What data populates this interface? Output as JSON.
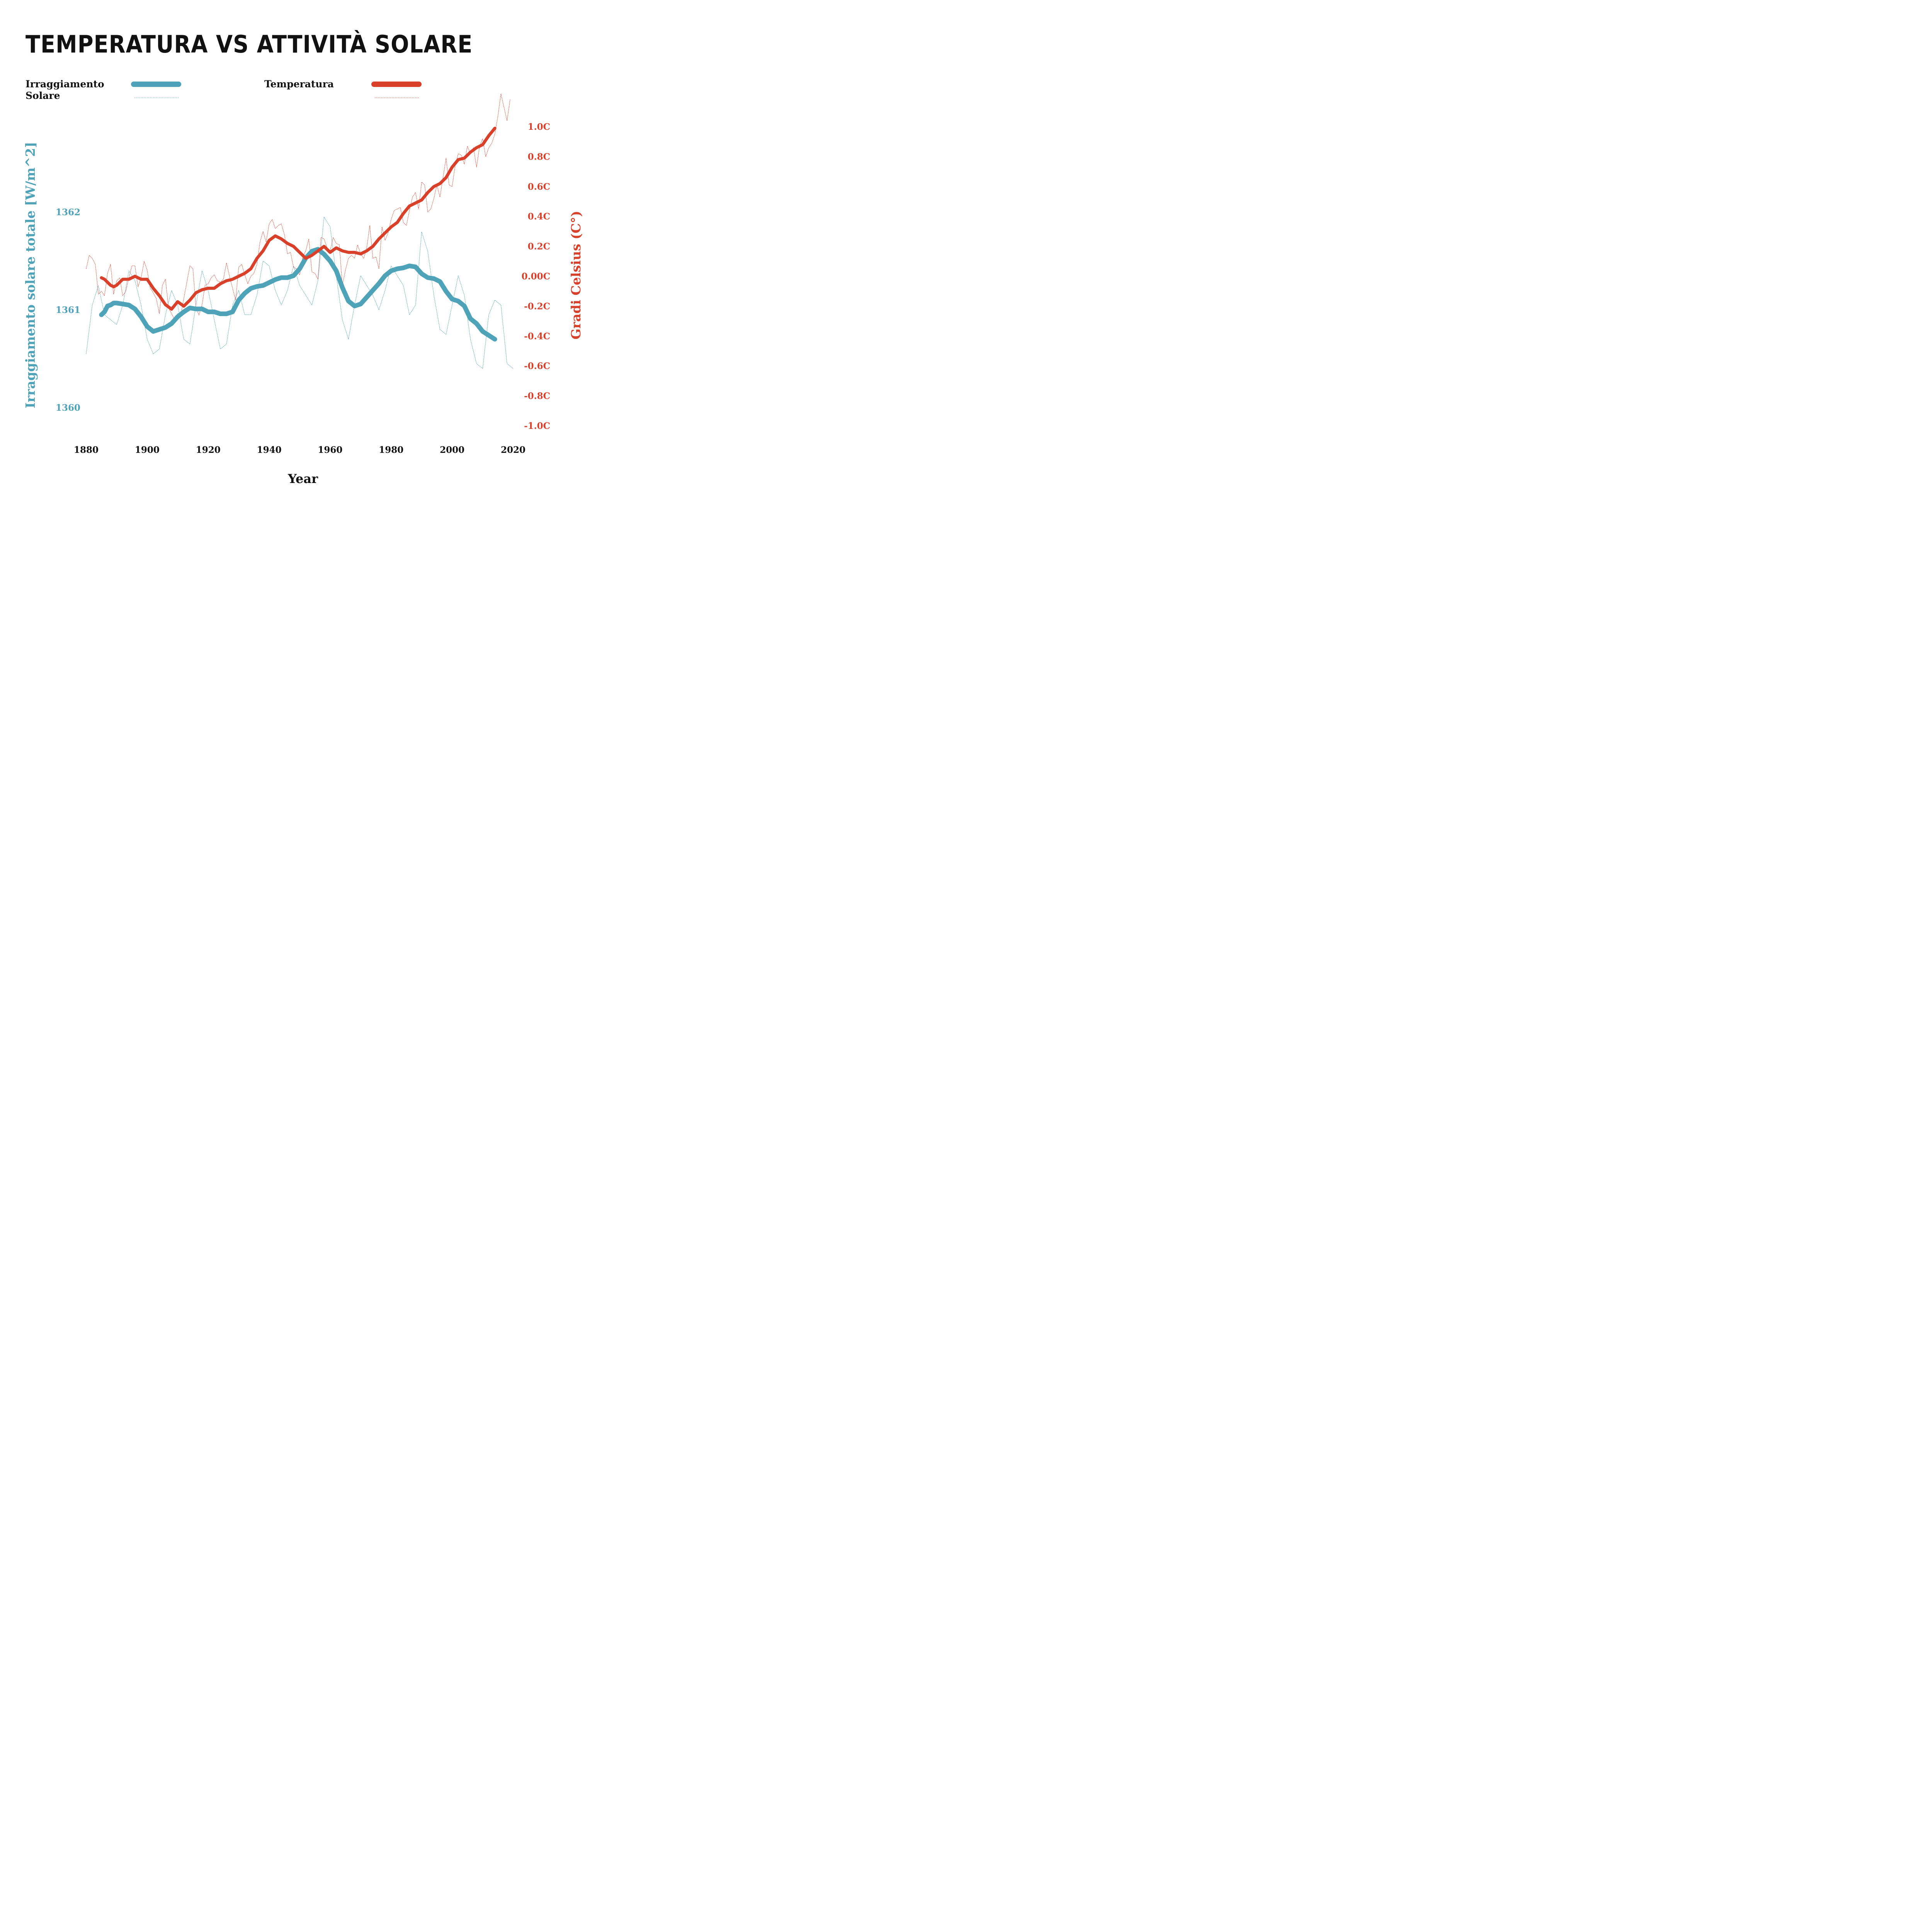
{
  "chart_data": {
    "type": "line",
    "title": "TEMPERATURA VS ATTIVITÀ SOLARE",
    "xlabel": "Year",
    "ylabel_left": "Irraggiamento solare totale [W/m^2]",
    "ylabel_right": "Gradi Celsius (C°)",
    "xlim": [
      1880,
      2020
    ],
    "ylim_left": [
      1359.75,
      1362.45
    ],
    "ylim_right": [
      -1.1,
      1.1
    ],
    "x_ticks": [
      "1880",
      "1900",
      "1920",
      "1940",
      "1960",
      "1980",
      "2000",
      "2020"
    ],
    "left_ticks": [
      {
        "value": 1362,
        "label": "1362"
      },
      {
        "value": 1361,
        "label": "1361"
      },
      {
        "value": 1360,
        "label": "1360"
      }
    ],
    "right_ticks": [
      {
        "value": 1.0,
        "label": "1.0C"
      },
      {
        "value": 0.8,
        "label": "0.8C"
      },
      {
        "value": 0.6,
        "label": "0.6C"
      },
      {
        "value": 0.4,
        "label": "0.4C"
      },
      {
        "value": 0.2,
        "label": "0.2C"
      },
      {
        "value": 0.0,
        "label": "0.00C"
      },
      {
        "value": -0.2,
        "label": "-0.2C"
      },
      {
        "value": -0.4,
        "label": "-0.4C"
      },
      {
        "value": -0.6,
        "label": "-0.6C"
      },
      {
        "value": -0.8,
        "label": "-0.8C"
      },
      {
        "value": -1.0,
        "label": "-1.0C"
      }
    ],
    "legend": [
      {
        "label_lines": [
          "Irraggiamento",
          "Solare"
        ],
        "color": "#4ea3b8"
      },
      {
        "label_lines": [
          "Temperatura"
        ],
        "color": "#d9402a"
      }
    ],
    "series": [
      {
        "name": "Irraggiamento Solare",
        "axis": "left",
        "style": "thick",
        "color": "#4ea3b8",
        "x": [
          1885,
          1886,
          1887,
          1888,
          1889,
          1890,
          1892,
          1894,
          1896,
          1898,
          1900,
          1902,
          1904,
          1906,
          1908,
          1910,
          1912,
          1914,
          1916,
          1918,
          1920,
          1922,
          1924,
          1926,
          1928,
          1930,
          1932,
          1934,
          1936,
          1938,
          1940,
          1942,
          1944,
          1946,
          1948,
          1950,
          1952,
          1954,
          1956,
          1958,
          1960,
          1962,
          1964,
          1966,
          1968,
          1970,
          1972,
          1974,
          1976,
          1978,
          1980,
          1982,
          1984,
          1986,
          1988,
          1990,
          1992,
          1994,
          1996,
          1998,
          2000,
          2002,
          2004,
          2006,
          2008,
          2010,
          2012,
          2014
        ],
        "y": [
          1360.95,
          1360.98,
          1361.04,
          1361.05,
          1361.07,
          1361.07,
          1361.06,
          1361.05,
          1361.01,
          1360.93,
          1360.83,
          1360.78,
          1360.8,
          1360.82,
          1360.86,
          1360.93,
          1360.98,
          1361.02,
          1361.01,
          1361.01,
          1360.98,
          1360.98,
          1360.96,
          1360.96,
          1360.98,
          1361.1,
          1361.17,
          1361.22,
          1361.24,
          1361.25,
          1361.28,
          1361.31,
          1361.33,
          1361.33,
          1361.35,
          1361.42,
          1361.53,
          1361.6,
          1361.62,
          1361.57,
          1361.5,
          1361.4,
          1361.23,
          1361.09,
          1361.04,
          1361.06,
          1361.13,
          1361.2,
          1361.27,
          1361.35,
          1361.4,
          1361.42,
          1361.43,
          1361.45,
          1361.44,
          1361.37,
          1361.33,
          1361.32,
          1361.29,
          1361.19,
          1361.11,
          1361.09,
          1361.04,
          1360.91,
          1360.86,
          1360.78,
          1360.74,
          1360.7
        ]
      },
      {
        "name": "Irraggiamento Solare (annuale)",
        "axis": "left",
        "style": "dotted",
        "color": "#4ea3b8",
        "x": [
          1880,
          1882,
          1884,
          1886,
          1888,
          1890,
          1892,
          1894,
          1896,
          1898,
          1900,
          1902,
          1904,
          1906,
          1908,
          1910,
          1912,
          1914,
          1916,
          1918,
          1920,
          1922,
          1924,
          1926,
          1928,
          1930,
          1932,
          1934,
          1936,
          1938,
          1940,
          1942,
          1944,
          1946,
          1948,
          1950,
          1952,
          1954,
          1956,
          1958,
          1960,
          1962,
          1964,
          1966,
          1968,
          1970,
          1972,
          1974,
          1976,
          1978,
          1980,
          1982,
          1984,
          1986,
          1988,
          1990,
          1992,
          1994,
          1996,
          1998,
          2000,
          2002,
          2004,
          2006,
          2008,
          2010,
          2012,
          2014,
          2016,
          2018,
          2020
        ],
        "y": [
          1360.55,
          1361.05,
          1361.25,
          1360.95,
          1360.9,
          1360.85,
          1361.05,
          1361.4,
          1361.3,
          1361.05,
          1360.7,
          1360.55,
          1360.6,
          1360.95,
          1361.2,
          1361.05,
          1360.7,
          1360.65,
          1361.05,
          1361.4,
          1361.2,
          1360.9,
          1360.6,
          1360.65,
          1361.05,
          1361.2,
          1360.95,
          1360.95,
          1361.15,
          1361.5,
          1361.45,
          1361.2,
          1361.05,
          1361.2,
          1361.45,
          1361.25,
          1361.15,
          1361.05,
          1361.3,
          1361.95,
          1361.85,
          1361.35,
          1360.9,
          1360.7,
          1361.05,
          1361.35,
          1361.25,
          1361.15,
          1361.0,
          1361.2,
          1361.45,
          1361.35,
          1361.25,
          1360.95,
          1361.05,
          1361.8,
          1361.6,
          1361.15,
          1360.8,
          1360.75,
          1361.05,
          1361.35,
          1361.15,
          1360.7,
          1360.45,
          1360.4,
          1360.95,
          1361.1,
          1361.05,
          1360.45,
          1360.4
        ]
      },
      {
        "name": "Temperatura",
        "axis": "right",
        "style": "thick",
        "color": "#d9402a",
        "x": [
          1885,
          1886,
          1887,
          1888,
          1889,
          1890,
          1892,
          1894,
          1896,
          1898,
          1900,
          1902,
          1904,
          1906,
          1908,
          1910,
          1912,
          1914,
          1916,
          1918,
          1920,
          1922,
          1924,
          1926,
          1928,
          1930,
          1932,
          1934,
          1936,
          1938,
          1940,
          1942,
          1944,
          1946,
          1948,
          1950,
          1952,
          1954,
          1956,
          1958,
          1960,
          1962,
          1964,
          1966,
          1968,
          1970,
          1972,
          1974,
          1976,
          1978,
          1980,
          1982,
          1984,
          1986,
          1988,
          1990,
          1992,
          1994,
          1996,
          1998,
          2000,
          2002,
          2004,
          2006,
          2008,
          2010,
          2012,
          2014
        ],
        "y": [
          -0.01,
          -0.02,
          -0.04,
          -0.06,
          -0.07,
          -0.06,
          -0.02,
          -0.02,
          0.0,
          -0.02,
          -0.02,
          -0.08,
          -0.13,
          -0.19,
          -0.22,
          -0.17,
          -0.2,
          -0.16,
          -0.11,
          -0.09,
          -0.08,
          -0.08,
          -0.05,
          -0.03,
          -0.02,
          0.0,
          0.02,
          0.05,
          0.12,
          0.17,
          0.24,
          0.27,
          0.25,
          0.22,
          0.2,
          0.16,
          0.12,
          0.14,
          0.17,
          0.2,
          0.16,
          0.19,
          0.17,
          0.16,
          0.16,
          0.15,
          0.17,
          0.2,
          0.25,
          0.29,
          0.33,
          0.36,
          0.42,
          0.47,
          0.49,
          0.51,
          0.56,
          0.6,
          0.62,
          0.66,
          0.73,
          0.78,
          0.79,
          0.83,
          0.86,
          0.88,
          0.94,
          0.99
        ]
      },
      {
        "name": "Temperatura (annuale)",
        "axis": "right",
        "style": "dotted",
        "color": "#d9402a",
        "x": [
          1880,
          1881,
          1882,
          1883,
          1884,
          1885,
          1886,
          1887,
          1888,
          1889,
          1890,
          1891,
          1892,
          1893,
          1894,
          1895,
          1896,
          1897,
          1898,
          1899,
          1900,
          1901,
          1902,
          1903,
          1904,
          1905,
          1906,
          1907,
          1908,
          1909,
          1910,
          1911,
          1912,
          1913,
          1914,
          1915,
          1916,
          1917,
          1918,
          1919,
          1920,
          1921,
          1922,
          1923,
          1924,
          1925,
          1926,
          1927,
          1928,
          1929,
          1930,
          1931,
          1932,
          1933,
          1934,
          1935,
          1936,
          1937,
          1938,
          1939,
          1940,
          1941,
          1942,
          1943,
          1944,
          1945,
          1946,
          1947,
          1948,
          1949,
          1950,
          1951,
          1952,
          1953,
          1954,
          1955,
          1956,
          1957,
          1958,
          1959,
          1960,
          1961,
          1962,
          1963,
          1964,
          1965,
          1966,
          1967,
          1968,
          1969,
          1970,
          1971,
          1972,
          1973,
          1974,
          1975,
          1976,
          1977,
          1978,
          1979,
          1980,
          1981,
          1982,
          1983,
          1984,
          1985,
          1986,
          1987,
          1988,
          1989,
          1990,
          1991,
          1992,
          1993,
          1994,
          1995,
          1996,
          1997,
          1998,
          1999,
          2000,
          2001,
          2002,
          2003,
          2004,
          2005,
          2006,
          2007,
          2008,
          2009,
          2010,
          2011,
          2012,
          2013,
          2014,
          2015,
          2016,
          2017,
          2018,
          2019
        ],
        "y": [
          0.05,
          0.14,
          0.12,
          0.08,
          -0.12,
          -0.1,
          -0.13,
          0.02,
          0.08,
          -0.12,
          -0.03,
          -0.01,
          -0.13,
          -0.1,
          -0.01,
          0.07,
          0.07,
          -0.07,
          -0.01,
          0.1,
          0.04,
          -0.08,
          -0.11,
          -0.15,
          -0.25,
          -0.06,
          -0.02,
          -0.21,
          -0.25,
          -0.29,
          -0.25,
          -0.26,
          -0.15,
          -0.04,
          0.07,
          0.05,
          -0.21,
          -0.26,
          -0.19,
          -0.06,
          -0.05,
          -0.01,
          0.01,
          -0.03,
          -0.04,
          -0.02,
          0.09,
          0.0,
          -0.08,
          -0.16,
          0.06,
          0.08,
          0.01,
          -0.05,
          0.0,
          0.02,
          0.08,
          0.23,
          0.3,
          0.23,
          0.35,
          0.38,
          0.32,
          0.34,
          0.35,
          0.28,
          0.15,
          0.16,
          0.06,
          0.05,
          0.01,
          0.13,
          0.17,
          0.25,
          0.03,
          0.02,
          -0.02,
          0.26,
          0.25,
          0.19,
          0.17,
          0.26,
          0.22,
          0.21,
          -0.06,
          0.04,
          0.12,
          0.14,
          0.12,
          0.21,
          0.15,
          0.12,
          0.19,
          0.34,
          0.12,
          0.13,
          0.05,
          0.33,
          0.24,
          0.29,
          0.38,
          0.44,
          0.45,
          0.46,
          0.36,
          0.34,
          0.44,
          0.53,
          0.56,
          0.45,
          0.63,
          0.61,
          0.43,
          0.45,
          0.52,
          0.61,
          0.53,
          0.66,
          0.79,
          0.61,
          0.6,
          0.74,
          0.82,
          0.81,
          0.75,
          0.87,
          0.82,
          0.86,
          0.73,
          0.87,
          0.92,
          0.8,
          0.86,
          0.89,
          0.95,
          1.07,
          1.22,
          1.13,
          1.04,
          1.18
        ]
      }
    ]
  }
}
